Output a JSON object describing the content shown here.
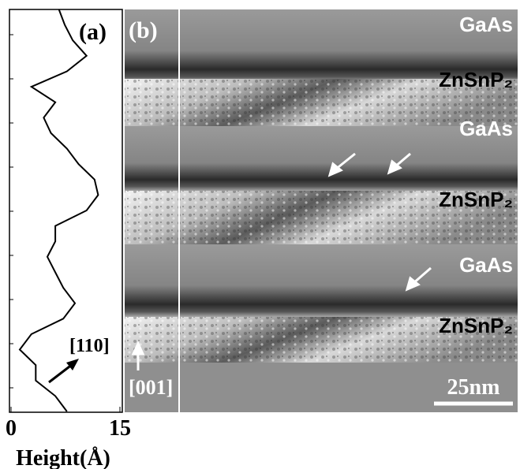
{
  "chart_data": {
    "type": "line",
    "panel_label": "(a)",
    "xlabel": "Height(Å)",
    "xlim": [
      0,
      15
    ],
    "xticks": [
      0,
      15
    ],
    "color": "#000000",
    "values": [
      6.6,
      7.4,
      8.5,
      10.4,
      7.7,
      2.8,
      6.1,
      4.5,
      5.5,
      7.7,
      9.3,
      11.5,
      12,
      10.4,
      6.1,
      6.1,
      5,
      6.1,
      7.2,
      8.8,
      7.2,
      2.8,
      1.2,
      3.4,
      3.4,
      6.1,
      7.7
    ],
    "direction_label": "[110]"
  },
  "panel_b": {
    "panel_label": "(b)",
    "layers": [
      "GaAs",
      "ZnSnP₂",
      "GaAs",
      "ZnSnP₂",
      "GaAs",
      "ZnSnP₂"
    ],
    "direction_label": "[001]",
    "scale_bar": "25nm"
  }
}
